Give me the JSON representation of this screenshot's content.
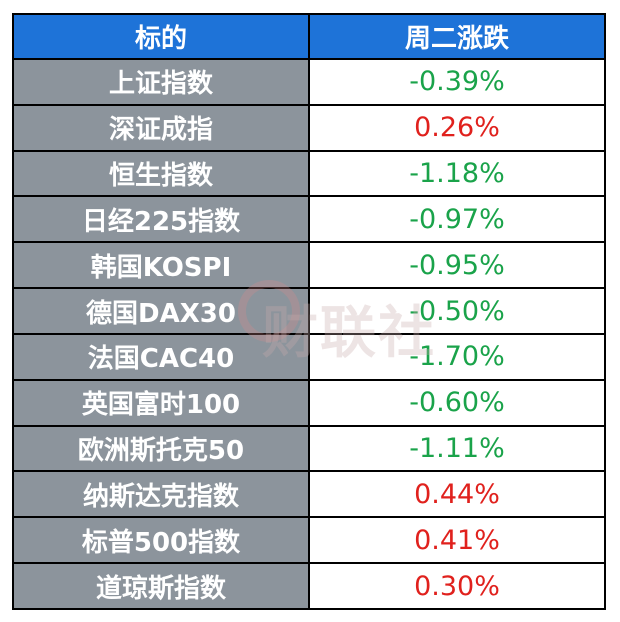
{
  "table": {
    "headers": [
      "标的",
      "周二涨跌"
    ],
    "rows": [
      {
        "name": "上证指数",
        "change": "-0.39%",
        "direction": "down"
      },
      {
        "name": "深证成指",
        "change": "0.26%",
        "direction": "up"
      },
      {
        "name": "恒生指数",
        "change": "-1.18%",
        "direction": "down"
      },
      {
        "name": "日经225指数",
        "change": "-0.97%",
        "direction": "down"
      },
      {
        "name": "韩国KOSPI",
        "change": "-0.95%",
        "direction": "down"
      },
      {
        "name": "德国DAX30",
        "change": "-0.50%",
        "direction": "down"
      },
      {
        "name": "法国CAC40",
        "change": "-1.70%",
        "direction": "down"
      },
      {
        "name": "英国富时100",
        "change": "-0.60%",
        "direction": "down"
      },
      {
        "name": "欧洲斯托克50",
        "change": "-1.11%",
        "direction": "down"
      },
      {
        "name": "纳斯达克指数",
        "change": "0.44%",
        "direction": "up"
      },
      {
        "name": "标普500指数",
        "change": "0.41%",
        "direction": "up"
      },
      {
        "name": "道琼斯指数",
        "change": "0.30%",
        "direction": "up"
      }
    ]
  },
  "watermark": {
    "text": "财联社"
  },
  "colors": {
    "header_bg": "#1e73d8",
    "name_bg": "#8c949c",
    "negative": "#1aa34a",
    "positive": "#e0211d"
  }
}
